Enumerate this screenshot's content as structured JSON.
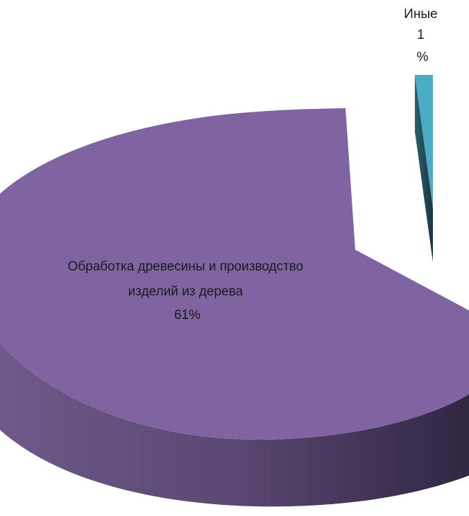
{
  "chart_data": {
    "type": "pie",
    "title": "",
    "style": "3d-exploded",
    "legend": "none",
    "slices": [
      {
        "label_lines": [
          "Обработка древесины и производство",
          "изделий из дерева"
        ],
        "value_label": "61%",
        "value": 61,
        "color": "#8064a2"
      },
      {
        "label_lines": [
          "Иные",
          "1"
        ],
        "value_label": "%",
        "value": 1,
        "color": "#4bacc6"
      }
    ]
  }
}
